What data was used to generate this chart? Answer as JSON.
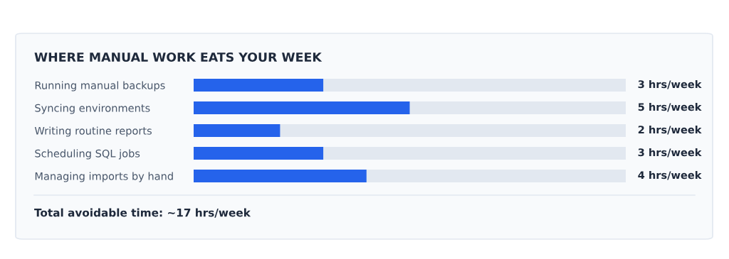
{
  "chart_data": {
    "type": "bar",
    "orientation": "horizontal",
    "title": "WHERE MANUAL WORK EATS YOUR WEEK",
    "categories": [
      "Running manual backups",
      "Syncing environments",
      "Writing routine reports",
      "Scheduling SQL jobs",
      "Managing imports by hand"
    ],
    "values": [
      3,
      5,
      2,
      3,
      4
    ],
    "value_labels": [
      "3 hrs/week",
      "5 hrs/week",
      "2 hrs/week",
      "3 hrs/week",
      "4 hrs/week"
    ],
    "color": "#2563eb",
    "xlim": [
      0,
      10
    ],
    "annotations": [
      "Total avoidable time: ~17 hrs/week"
    ],
    "grid": false,
    "legend": false
  }
}
